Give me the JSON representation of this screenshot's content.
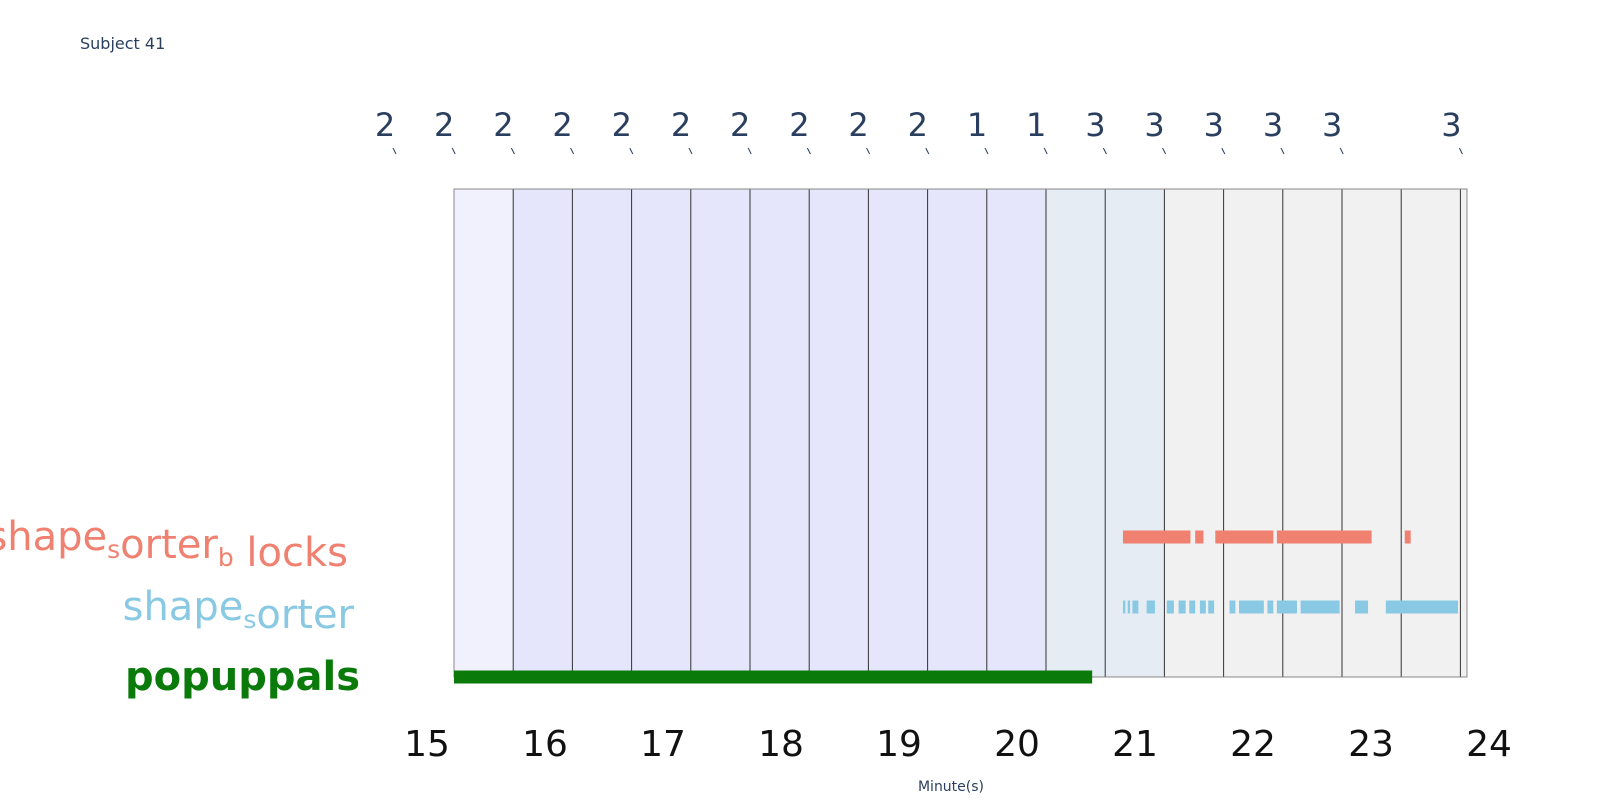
{
  "subject": "Subject 41",
  "colors": {
    "shape_sorter_blocks": "#f08070",
    "shape_sorter": "#89c9e4",
    "popuppals": "#0a7a0a",
    "band_lavender": "#e5e5fb",
    "band_lavender_light": "#f1f1fd",
    "band_blue": "#e5ecf3",
    "band_gray": "#f1f1f1",
    "grid": "#333333",
    "frame": "#888888"
  },
  "chart_data": {
    "type": "timeline",
    "xlabel": "Minute(s)",
    "xlim": [
      14.8,
      24.0
    ],
    "xticks": [
      15,
      16,
      17,
      18,
      19,
      20,
      21,
      22,
      23,
      24
    ],
    "segments": [
      {
        "start": 15.0,
        "end": 15.5,
        "label": "2",
        "fill": "band_lavender_light"
      },
      {
        "start": 15.5,
        "end": 16.0,
        "label": "2",
        "fill": "band_lavender"
      },
      {
        "start": 16.0,
        "end": 16.5,
        "label": "2",
        "fill": "band_lavender"
      },
      {
        "start": 16.5,
        "end": 17.0,
        "label": "2",
        "fill": "band_lavender"
      },
      {
        "start": 17.0,
        "end": 17.5,
        "label": "2",
        "fill": "band_lavender"
      },
      {
        "start": 17.5,
        "end": 18.0,
        "label": "2",
        "fill": "band_lavender"
      },
      {
        "start": 18.0,
        "end": 18.5,
        "label": "2",
        "fill": "band_lavender"
      },
      {
        "start": 18.5,
        "end": 19.0,
        "label": "2",
        "fill": "band_lavender"
      },
      {
        "start": 19.0,
        "end": 19.5,
        "label": "2",
        "fill": "band_lavender"
      },
      {
        "start": 19.5,
        "end": 20.0,
        "label": "2",
        "fill": "band_lavender"
      },
      {
        "start": 20.0,
        "end": 20.5,
        "label": "1",
        "fill": "band_blue"
      },
      {
        "start": 20.5,
        "end": 21.0,
        "label": "1",
        "fill": "band_blue"
      },
      {
        "start": 21.0,
        "end": 21.5,
        "label": "3",
        "fill": "band_gray"
      },
      {
        "start": 21.5,
        "end": 22.0,
        "label": "3",
        "fill": "band_gray"
      },
      {
        "start": 22.0,
        "end": 22.5,
        "label": "3",
        "fill": "band_gray"
      },
      {
        "start": 22.5,
        "end": 23.0,
        "label": "3",
        "fill": "band_gray"
      },
      {
        "start": 23.0,
        "end": 23.5,
        "label": "3",
        "fill": "band_gray"
      },
      {
        "start": 23.5,
        "end": 23.58,
        "label": "3",
        "fill": "band_gray"
      }
    ],
    "series": [
      {
        "name": "shape_sorter_blocks",
        "label_main": [
          "shape",
          "orter",
          " locks"
        ],
        "label_sub": [
          "s",
          "b"
        ],
        "color": "shape_sorter_blocks",
        "intervals": [
          [
            20.65,
            21.22
          ],
          [
            21.26,
            21.33
          ],
          [
            21.43,
            21.92
          ],
          [
            21.95,
            22.75
          ],
          [
            23.03,
            23.08
          ]
        ]
      },
      {
        "name": "shape_sorter",
        "label_main": [
          "shape",
          "orter"
        ],
        "label_sub": [
          "s"
        ],
        "color": "shape_sorter",
        "intervals": [
          [
            20.65,
            20.67
          ],
          [
            20.69,
            20.71
          ],
          [
            20.73,
            20.78
          ],
          [
            20.85,
            20.92
          ],
          [
            21.02,
            21.08
          ],
          [
            21.12,
            21.18
          ],
          [
            21.21,
            21.26
          ],
          [
            21.3,
            21.35
          ],
          [
            21.37,
            21.42
          ],
          [
            21.55,
            21.6
          ],
          [
            21.63,
            21.84
          ],
          [
            21.87,
            21.92
          ],
          [
            21.95,
            22.12
          ],
          [
            22.15,
            22.48
          ],
          [
            22.61,
            22.72
          ],
          [
            22.87,
            23.48
          ]
        ]
      },
      {
        "name": "popuppals",
        "label_main": [
          "popuppals"
        ],
        "label_sub": [],
        "color": "popuppals",
        "intervals": [
          [
            15.0,
            20.39
          ]
        ]
      }
    ]
  }
}
